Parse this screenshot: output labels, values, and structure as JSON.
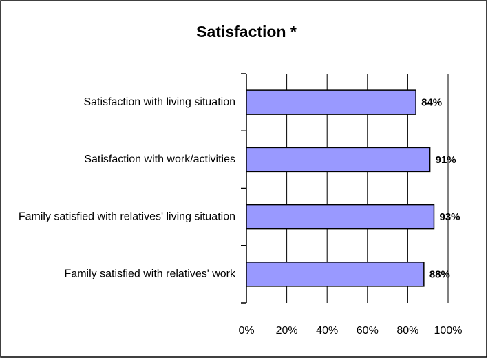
{
  "chart_data": {
    "type": "hbar",
    "title": "Satisfaction *",
    "categories": [
      "Satisfaction with living situation",
      "Satisfaction with work/activities",
      "Family satisfied with relatives' living situation",
      "Family satisfied with relatives' work"
    ],
    "values": [
      84,
      91,
      93,
      88
    ],
    "value_labels": [
      "84%",
      "91%",
      "93%",
      "88%"
    ],
    "color": "#9999ff",
    "xlim": [
      0,
      100
    ],
    "xticks": [
      {
        "value": 0,
        "label": "0%"
      },
      {
        "value": 20,
        "label": "20%"
      },
      {
        "value": 40,
        "label": "40%"
      },
      {
        "value": 60,
        "label": "60%"
      },
      {
        "value": 80,
        "label": "80%"
      },
      {
        "value": 100,
        "label": "100%"
      }
    ],
    "grid": true
  }
}
